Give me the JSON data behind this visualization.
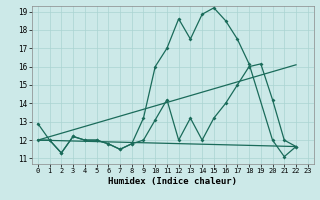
{
  "xlabel": "Humidex (Indice chaleur)",
  "background_color": "#cce9e8",
  "grid_color": "#aad4d2",
  "line_color": "#1a6b5a",
  "xlim": [
    -0.5,
    23.5
  ],
  "ylim": [
    10.7,
    19.3
  ],
  "xticks": [
    0,
    1,
    2,
    3,
    4,
    5,
    6,
    7,
    8,
    9,
    10,
    11,
    12,
    13,
    14,
    15,
    16,
    17,
    18,
    19,
    20,
    21,
    22,
    23
  ],
  "yticks": [
    11,
    12,
    13,
    14,
    15,
    16,
    17,
    18,
    19
  ],
  "series1_x": [
    0,
    1,
    2,
    3,
    4,
    5,
    6,
    7,
    8,
    9,
    10,
    11,
    12,
    13,
    14,
    15,
    16,
    17,
    18,
    20,
    21,
    22
  ],
  "series1_y": [
    12.9,
    12.0,
    11.3,
    12.2,
    12.0,
    12.0,
    11.8,
    11.5,
    11.8,
    13.2,
    16.0,
    17.0,
    18.6,
    17.5,
    18.85,
    19.2,
    18.5,
    17.5,
    16.15,
    12.0,
    11.1,
    11.65
  ],
  "series2_x": [
    0,
    1,
    2,
    3,
    4,
    5,
    6,
    7,
    8,
    9,
    10,
    11,
    12,
    13,
    14,
    15,
    16,
    17,
    18,
    19,
    20,
    21,
    22
  ],
  "series2_y": [
    12.0,
    12.0,
    11.3,
    12.2,
    12.0,
    12.0,
    11.8,
    11.5,
    11.8,
    12.0,
    13.1,
    14.2,
    12.0,
    13.2,
    12.0,
    13.2,
    14.0,
    15.0,
    16.0,
    16.15,
    14.2,
    12.0,
    11.65
  ],
  "line3_x": [
    0,
    22
  ],
  "line3_y": [
    12.0,
    16.1
  ],
  "line4_x": [
    0,
    22
  ],
  "line4_y": [
    12.0,
    11.65
  ]
}
